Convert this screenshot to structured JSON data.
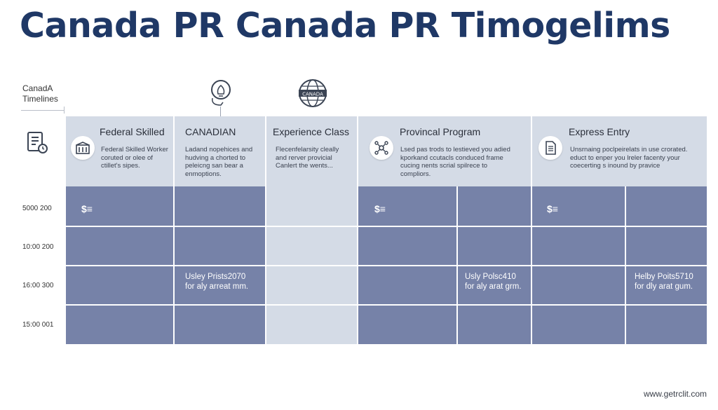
{
  "title": "Canada PR Canada PR Timogelims",
  "side_label": {
    "line1": "CanadA",
    "line2": "Timelines"
  },
  "top_icons": [
    "lightbulb-head-icon",
    "globe-badge-icon"
  ],
  "globe_badge_text": "CANADA",
  "columns": [
    {
      "title": "Federal Skilled",
      "icon": "building-icon",
      "desc": [
        "Federal Skilled Worker",
        "coruted or olee of",
        "ctillet's sipes."
      ]
    },
    {
      "title": "CANADIAN",
      "icon": "",
      "desc": [
        "Ladand nopehices and",
        "hudving a chorted to",
        "peleicng san bear a",
        "enmoptions."
      ]
    },
    {
      "title": "Experience Class",
      "icon": "",
      "desc": [
        "Flecenfelarsity cleally",
        "and rerver provicial",
        "Canlert the wents..."
      ]
    },
    {
      "title": "Provincal Program",
      "icon": "network-icon",
      "desc": [
        "Lsed pas trods to lestieved you adied",
        "kporkand ccutacls conduced frame",
        "cucing nents scrial spilrece to",
        "compliors."
      ]
    },
    {
      "title": "Express Entry",
      "icon": "document-icon",
      "desc": [
        "Unsrnaing poclpeirelats in use crorated.",
        "educt to enper you lreler facenty your",
        "coecerting s inound by pravice"
      ]
    }
  ],
  "row_labels": [
    "5000 200",
    "10:00 200",
    "16:00 300",
    "15:00 001"
  ],
  "money_glyph": "$≡",
  "cell_notes": [
    {
      "line1": "Usley Prists2070",
      "line2": "for aly arreat mm."
    },
    {
      "line1": "Usly Polsc410",
      "line2": "for aly arat grm."
    },
    {
      "line1": "Helby Poits5710",
      "line2": "for dly arat gum."
    }
  ],
  "footer": "www.getrclit.com",
  "colors": {
    "title": "#1f3866",
    "header_bg": "#d4dbe6",
    "cell_bg": "#7682a8"
  }
}
